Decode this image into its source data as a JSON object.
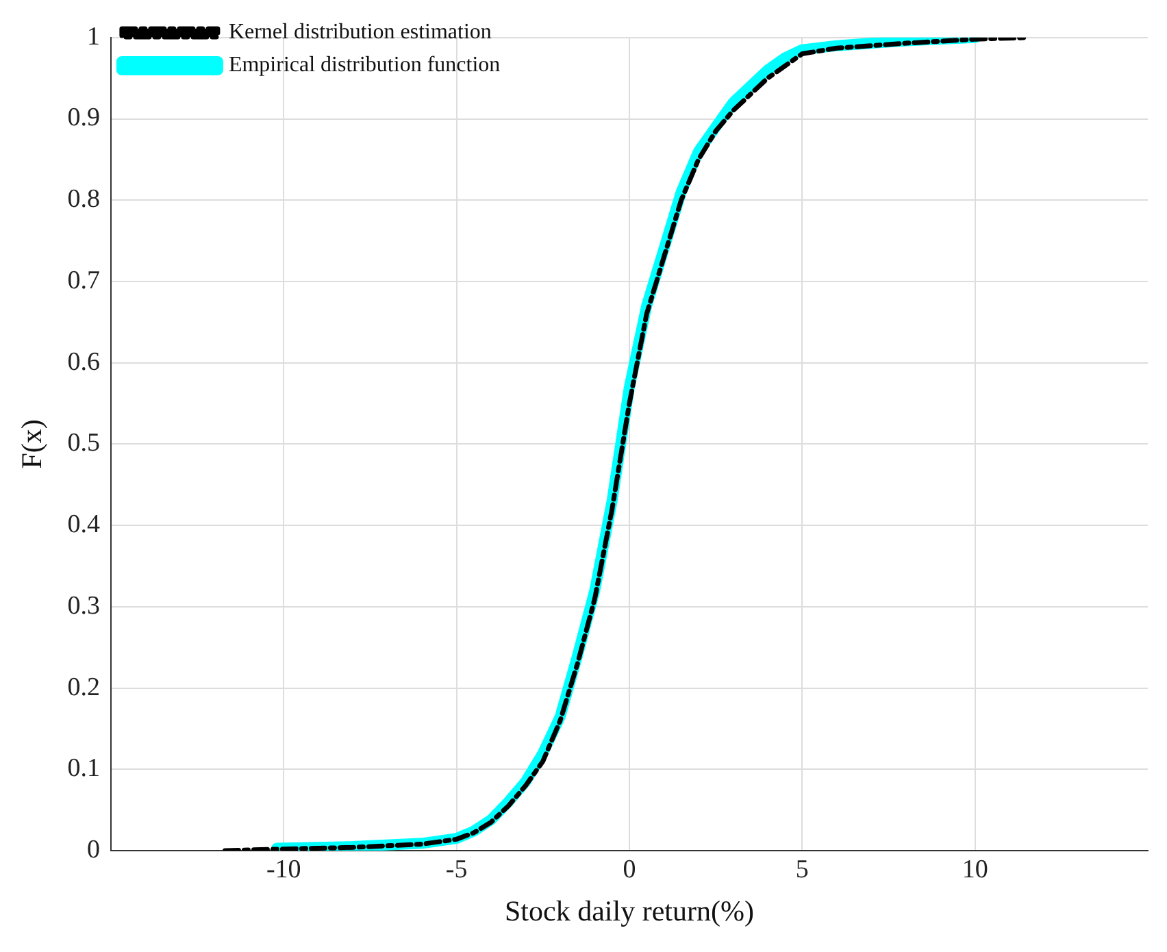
{
  "chart_data": {
    "type": "line",
    "xlabel": "Stock daily return(%)",
    "ylabel": "F(x)",
    "xlim": [
      -15,
      15
    ],
    "xticks": [
      -10,
      -5,
      0,
      5,
      10
    ],
    "ylim": [
      0,
      1
    ],
    "yticks": [
      0,
      0.1,
      0.2,
      0.3,
      0.4,
      0.5,
      0.6,
      0.7,
      0.8,
      0.9,
      1
    ],
    "grid": true,
    "legend": "top left",
    "marker": "none",
    "series": [
      {
        "name": "Empirical distribution function",
        "color": "#00ffff",
        "line_style": "solid",
        "x": [
          -10.2,
          -8,
          -6,
          -5,
          -4.5,
          -4,
          -3.5,
          -3,
          -2.5,
          -2,
          -1.5,
          -1,
          -0.5,
          0,
          0.5,
          1,
          1.5,
          2,
          2.5,
          3,
          3.5,
          4,
          4.5,
          5,
          6,
          8,
          10
        ],
        "values": [
          0.003,
          0.005,
          0.009,
          0.015,
          0.024,
          0.038,
          0.06,
          0.085,
          0.12,
          0.165,
          0.24,
          0.32,
          0.43,
          0.57,
          0.67,
          0.74,
          0.81,
          0.86,
          0.89,
          0.92,
          0.94,
          0.96,
          0.975,
          0.985,
          0.99,
          0.996,
          1
        ]
      },
      {
        "name": "Kernel distribution estimation",
        "color": "#000000",
        "line_style": "dashdot",
        "x": [
          -11.7,
          -10,
          -8,
          -6,
          -5,
          -4.5,
          -4,
          -3.5,
          -3,
          -2.5,
          -2,
          -1.5,
          -1,
          -0.5,
          0,
          0.5,
          1,
          1.5,
          2,
          2.5,
          3,
          3.5,
          4,
          4.5,
          5,
          6,
          8,
          10,
          11.5
        ],
        "values": [
          0,
          0.002,
          0.004,
          0.008,
          0.014,
          0.022,
          0.035,
          0.055,
          0.08,
          0.11,
          0.16,
          0.23,
          0.31,
          0.42,
          0.55,
          0.66,
          0.73,
          0.8,
          0.85,
          0.885,
          0.91,
          0.93,
          0.95,
          0.965,
          0.98,
          0.987,
          0.993,
          0.998,
          1
        ]
      }
    ]
  }
}
